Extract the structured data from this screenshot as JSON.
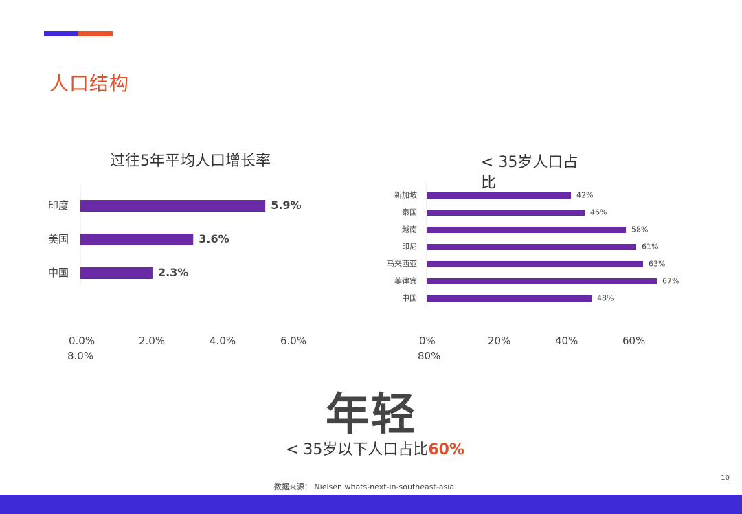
{
  "section_title": "人口结构",
  "headline": "年轻",
  "subline": {
    "prefix": "< 35岁以下人口占比",
    "highlight": "60%"
  },
  "source": "数据来源：  Nielsen whats-next-in-southeast-asia",
  "page_number": "10",
  "colors": {
    "bar": "#6a2aa6",
    "accent_blue": "#3f2bd6",
    "accent_orange": "#e8542a",
    "highlight": "#e0502a"
  },
  "chart_data": [
    {
      "type": "bar",
      "orientation": "horizontal",
      "title": "过往5年平均人口增长率",
      "categories": [
        "印度",
        "美国",
        "中国"
      ],
      "values": [
        5.9,
        3.6,
        2.3
      ],
      "value_labels": [
        "5.9%",
        "3.6%",
        "2.3%"
      ],
      "xlim": [
        0,
        8
      ],
      "x_tick_labels": [
        "0.0%",
        "2.0%",
        "4.0%",
        "6.0%",
        "8.0%"
      ]
    },
    {
      "type": "bar",
      "orientation": "horizontal",
      "title": "< 35岁人口占比",
      "categories": [
        "新加坡",
        "泰国",
        "越南",
        "印尼",
        "马来西亚",
        "菲律宾",
        "中国"
      ],
      "values": [
        42,
        46,
        58,
        61,
        63,
        67,
        48
      ],
      "value_labels": [
        "42%",
        "46%",
        "58%",
        "61%",
        "63%",
        "67%",
        "48%"
      ],
      "xlim": [
        0,
        80
      ],
      "x_tick_labels": [
        "0%",
        "20%",
        "40%",
        "60%",
        "80%"
      ]
    }
  ]
}
